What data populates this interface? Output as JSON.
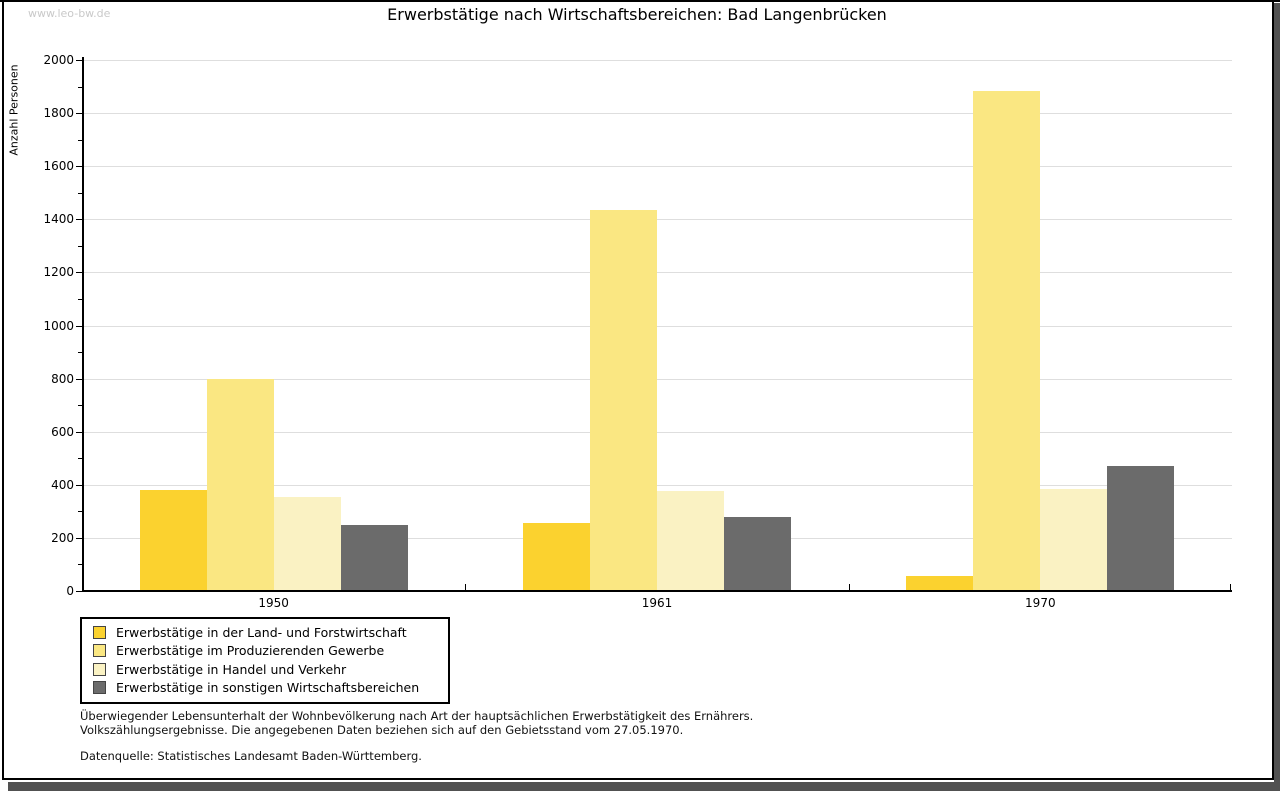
{
  "watermark": "www.leo-bw.de",
  "chart_data": {
    "type": "bar",
    "title": "Erwerbstätige nach Wirtschaftsbereichen: Bad Langenbrücken",
    "categories": [
      "1950",
      "1961",
      "1970"
    ],
    "series": [
      {
        "name": "Erwerbstätige in der Land- und Forstwirtschaft",
        "color": "#FBD22F",
        "values": [
          380,
          255,
          55
        ]
      },
      {
        "name": "Erwerbstätige im Produzierenden Gewerbe",
        "color": "#FAE782",
        "values": [
          800,
          1435,
          1885
        ]
      },
      {
        "name": "Erwerbstätige in Handel und Verkehr",
        "color": "#FAF2C3",
        "values": [
          355,
          375,
          385
        ]
      },
      {
        "name": "Erwerbstätige in sonstigen Wirtschaftsbereichen",
        "color": "#6B6B6B",
        "values": [
          250,
          278,
          470
        ]
      }
    ],
    "xlabel": "",
    "ylabel": "Anzahl Personen",
    "ylim": [
      0,
      2000
    ],
    "ytick_major": 200,
    "ytick_minor": 100,
    "grid": true,
    "legend_position": "bottom-left"
  },
  "footnotes": {
    "line1": "Überwiegender Lebensunterhalt der Wohnbevölkerung nach Art der hauptsächlichen Erwerbstätigkeit des Ernährers.",
    "line2": "Volkszählungsergebnisse. Die angegebenen Daten beziehen sich auf den Gebietsstand vom 27.05.1970.",
    "source": "Datenquelle: Statistisches Landesamt Baden-Württemberg."
  }
}
